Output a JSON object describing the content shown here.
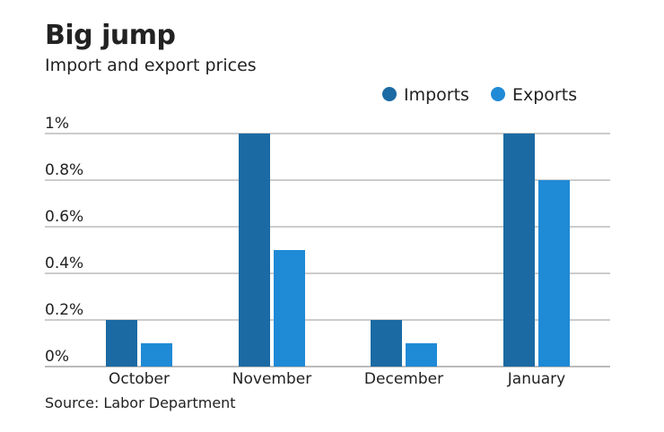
{
  "chart_data": {
    "type": "bar",
    "title": "Big jump",
    "subtitle": "Import and export prices",
    "categories": [
      "October",
      "November",
      "December",
      "January"
    ],
    "series": [
      {
        "name": "Imports",
        "values": [
          0.2,
          1.0,
          0.2,
          1.0
        ],
        "color": "#1b6aa3"
      },
      {
        "name": "Exports",
        "values": [
          0.1,
          0.5,
          0.1,
          0.8
        ],
        "color": "#1f8ad6"
      }
    ],
    "yticks": [
      0,
      0.2,
      0.4,
      0.6,
      0.8,
      1.0
    ],
    "ytick_labels": [
      "0%",
      "0.2%",
      "0.4%",
      "0.6%",
      "0.8%",
      "1%"
    ],
    "ylim": [
      0,
      1.0
    ],
    "grid": true,
    "legend": "top-right",
    "source": "Source: Labor Department"
  }
}
